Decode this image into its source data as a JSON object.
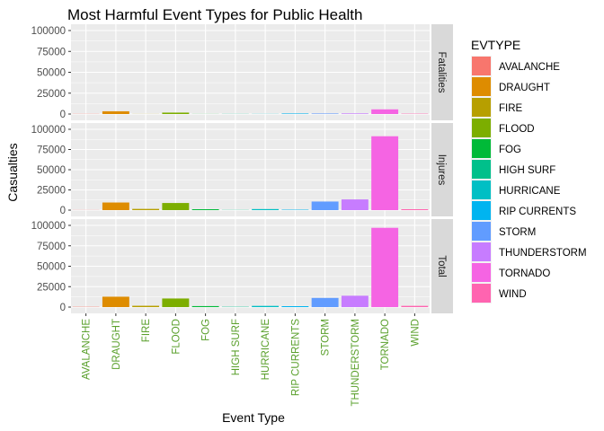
{
  "chart_data": {
    "type": "bar",
    "title": "Most Harmful Event Types for Public Health",
    "xlabel": "Event Type",
    "ylabel": "Casualties",
    "categories": [
      "AVALANCHE",
      "DRAUGHT",
      "FIRE",
      "FLOOD",
      "FOG",
      "HIGH SURF",
      "HURRICANE",
      "RIP CURRENTS",
      "STORM",
      "THUNDERSTORM",
      "TORNADO",
      "WIND"
    ],
    "colors": [
      "#F8766D",
      "#DE8C00",
      "#B79F00",
      "#7CAE00",
      "#00BA38",
      "#00C08B",
      "#00BFC4",
      "#00B4F0",
      "#619CFF",
      "#C77CFF",
      "#F564E3",
      "#FF64B0"
    ],
    "ylim": [
      0,
      100000
    ],
    "yticks": [
      0,
      25000,
      50000,
      75000,
      100000
    ],
    "facets": [
      {
        "name": "Fatalities",
        "values": [
          200,
          3300,
          100,
          1700,
          100,
          150,
          150,
          600,
          600,
          700,
          5600,
          400
        ]
      },
      {
        "name": "Injures",
        "values": [
          150,
          9400,
          1500,
          8800,
          1100,
          200,
          1300,
          500,
          10600,
          13200,
          91400,
          1100
        ]
      },
      {
        "name": "Total",
        "values": [
          350,
          12700,
          1600,
          10500,
          1200,
          350,
          1450,
          1100,
          11200,
          13900,
          97000,
          1500
        ]
      }
    ],
    "legend": {
      "title": "EVTYPE",
      "position": "right"
    },
    "grid": true
  }
}
